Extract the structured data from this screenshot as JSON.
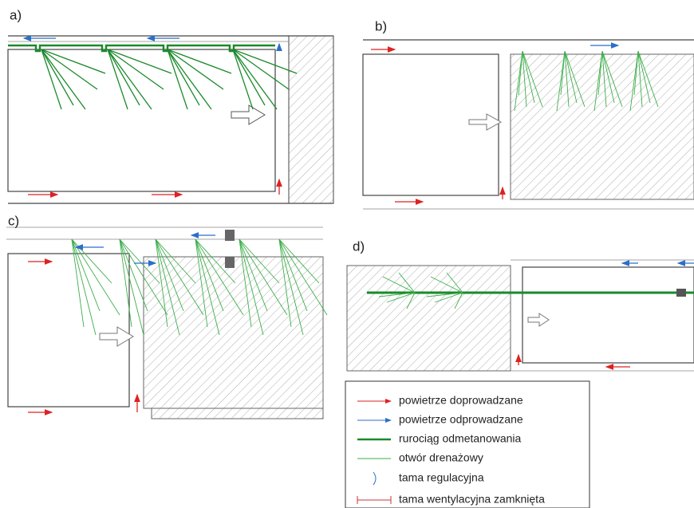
{
  "panels": [
    {
      "label": "a)"
    },
    {
      "label": "b)"
    },
    {
      "label": "c)"
    },
    {
      "label": "d)"
    }
  ],
  "legend": {
    "items": [
      {
        "label": "powietrze doprowadzane"
      },
      {
        "label": "powietrze odprowadzane"
      },
      {
        "label": "rurociąg odmetanowania"
      },
      {
        "label": "otwór drenażowy"
      },
      {
        "label": "tama regulacyjna"
      },
      {
        "label": "tama wentylacyjna zamknięta"
      }
    ]
  }
}
